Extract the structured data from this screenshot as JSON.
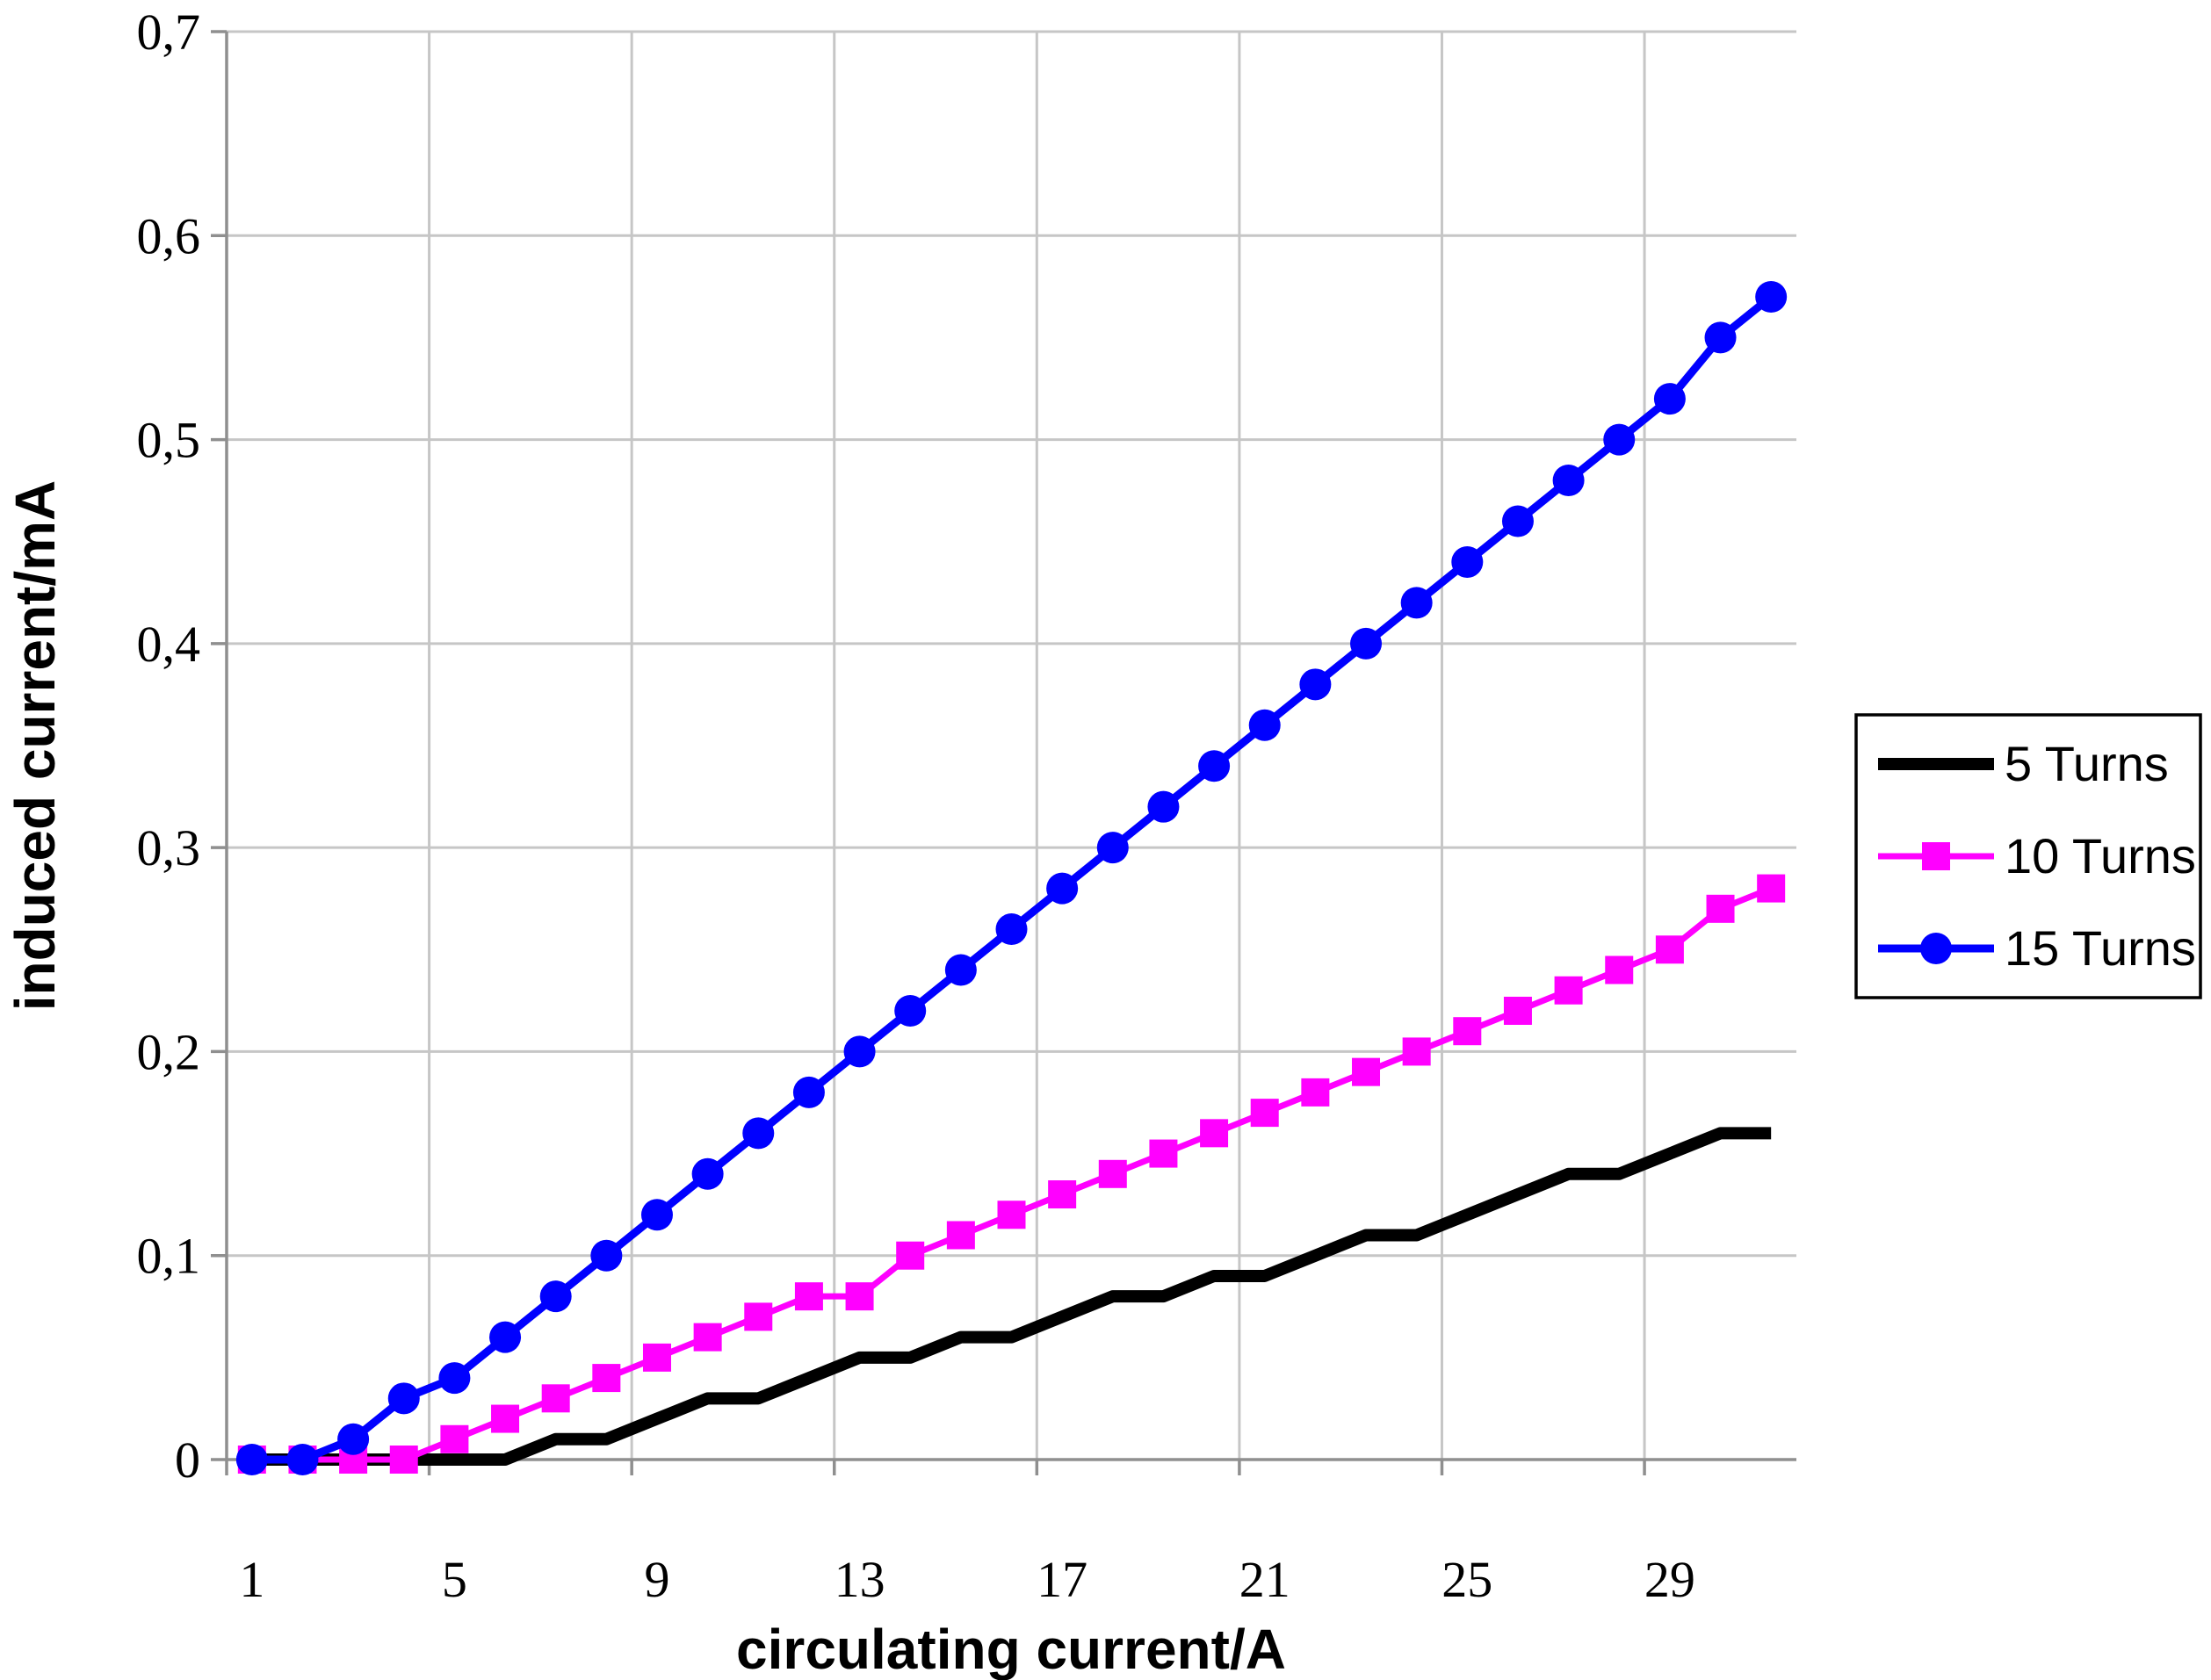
{
  "chart_data": {
    "type": "line",
    "title": "",
    "xlabel": "circulating current/A",
    "ylabel": "induced current/mA",
    "x": [
      1,
      2,
      3,
      4,
      5,
      6,
      7,
      8,
      9,
      10,
      11,
      12,
      13,
      14,
      15,
      16,
      17,
      18,
      19,
      20,
      21,
      22,
      23,
      24,
      25,
      26,
      27,
      28,
      29,
      30,
      31
    ],
    "series": [
      {
        "name": "5 Turns",
        "color": "#000000",
        "marker": "none",
        "line_width": 14,
        "values": [
          0,
          0,
          0,
          0,
          0,
          0,
          0.01,
          0.01,
          0.02,
          0.03,
          0.03,
          0.04,
          0.05,
          0.05,
          0.06,
          0.06,
          0.07,
          0.08,
          0.08,
          0.09,
          0.09,
          0.1,
          0.11,
          0.11,
          0.12,
          0.13,
          0.14,
          0.14,
          0.15,
          0.16,
          0.16
        ]
      },
      {
        "name": "10 Turns",
        "color": "#ff00ff",
        "marker": "square",
        "line_width": 7,
        "values": [
          0,
          0,
          0,
          0,
          0.01,
          0.02,
          0.03,
          0.04,
          0.05,
          0.06,
          0.07,
          0.08,
          0.08,
          0.1,
          0.11,
          0.12,
          0.13,
          0.14,
          0.15,
          0.16,
          0.17,
          0.18,
          0.19,
          0.2,
          0.21,
          0.22,
          0.23,
          0.24,
          0.25,
          0.27,
          0.28
        ]
      },
      {
        "name": "15 Turns",
        "color": "#0000ff",
        "marker": "circle",
        "line_width": 9,
        "values": [
          0,
          0,
          0.01,
          0.03,
          0.04,
          0.06,
          0.08,
          0.1,
          0.12,
          0.14,
          0.16,
          0.18,
          0.2,
          0.22,
          0.24,
          0.26,
          0.28,
          0.3,
          0.32,
          0.34,
          0.36,
          0.38,
          0.4,
          0.42,
          0.44,
          0.46,
          0.48,
          0.5,
          0.52,
          0.55,
          0.57
        ]
      }
    ],
    "xlim": [
      0.5,
      31.5
    ],
    "ylim": [
      0,
      0.7
    ],
    "xticks": {
      "values": [
        1,
        5,
        9,
        13,
        17,
        21,
        25,
        29
      ],
      "labels": [
        "1",
        "5",
        "9",
        "13",
        "17",
        "21",
        "25",
        "29"
      ],
      "gridline_offset": -0.5
    },
    "yticks": {
      "values": [
        0,
        0.1,
        0.2,
        0.3,
        0.4,
        0.5,
        0.6,
        0.7
      ],
      "labels": [
        "0",
        "0,1",
        "0,2",
        "0,3",
        "0,4",
        "0,5",
        "0,6",
        "0,7"
      ]
    },
    "grid": true,
    "legend_position": "right",
    "colors": {
      "gridline": "#c6c6c6",
      "axis": "#8f8f8f",
      "text": "#000000",
      "background": "#ffffff"
    }
  }
}
